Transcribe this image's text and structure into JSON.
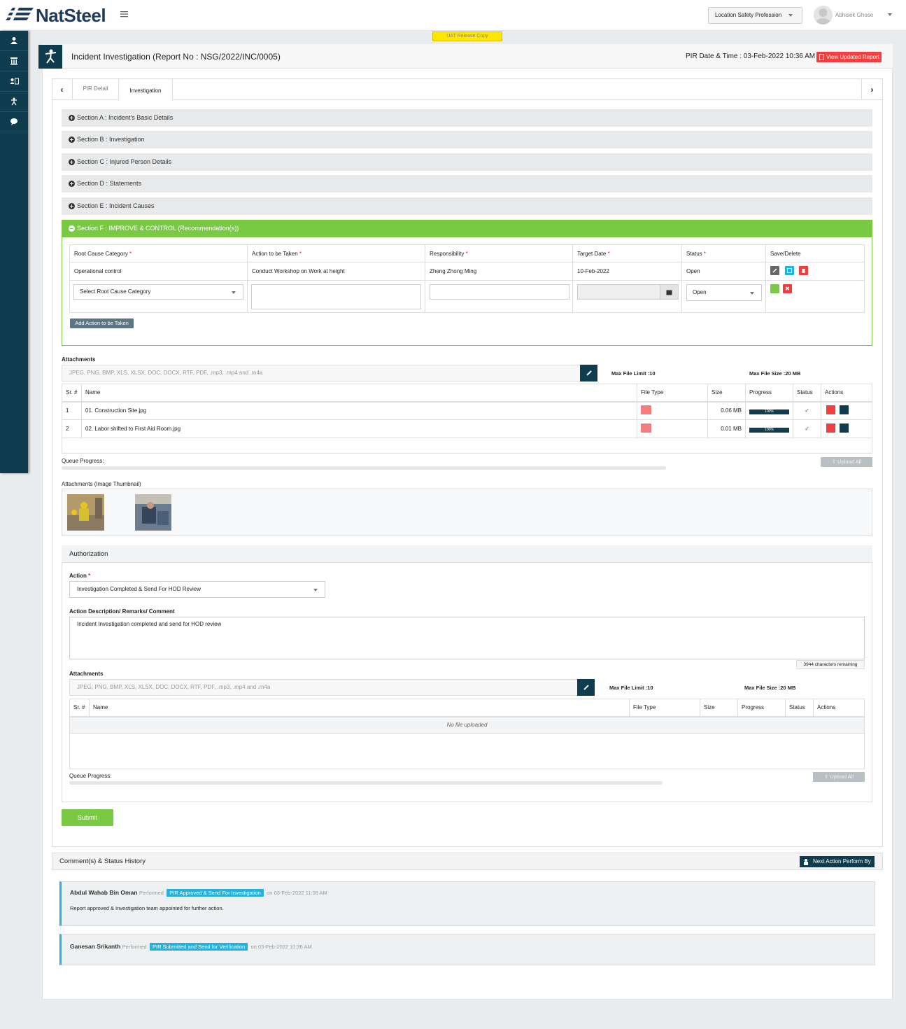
{
  "topbar": {
    "logo_text": "NatSteel",
    "role_select": "Location Safety Profession",
    "user_name": "Abhisek Ghose"
  },
  "banner": "UAT Release Copy",
  "sidebar": {
    "icons": [
      "profile-icon",
      "bank-icon",
      "id-card-icon",
      "incident-person-icon",
      "chat-icon"
    ]
  },
  "header": {
    "title": "Incident Investigation (Report No : NSG/2022/INC/0005)",
    "pir_date": "PIR Date & Time : 03-Feb-2022 10:36 AM",
    "view_report": "View Updated Report"
  },
  "tabs": [
    {
      "label": "PIR Detail",
      "active": false
    },
    {
      "label": "Investigation",
      "active": true
    }
  ],
  "sections": [
    "Section A : Incident's Basic Details",
    "Section B : Investigation",
    "Section C : Injured Person Details",
    "Section D : Statements",
    "Section E : Incident Causes",
    "Section F : IMPROVE & CONTROL (Recommendation(s))"
  ],
  "recommendations": {
    "headers": [
      "Root Cause Category",
      "Action to be Taken",
      "Responsibility",
      "Target Date",
      "Status",
      "Save/Delete"
    ],
    "required_mark": "*",
    "rows": [
      {
        "root_cause": "Operational control",
        "action": "Conduct Workshop on Work at height",
        "responsibility": "Zheng Zhong Ming",
        "target_date": "10-Feb-2022",
        "status": "Open"
      }
    ],
    "new_row": {
      "root_cause_placeholder": "Select Root Cause Category",
      "status": "Open"
    },
    "add_button": "Add Action to be Taken"
  },
  "attachments": {
    "label": "Attachments",
    "placeholder": "JPEG, PNG, BMP, XLS, XLSX, DOC, DOCX, RTF, PDF, .mp3, .mp4 and .m4a",
    "max_limit": "Max File Limit :10",
    "max_size": "Max File Size :20 MB",
    "headers": [
      "Sr. #",
      "Name",
      "File Type",
      "Size",
      "Progress",
      "Status",
      "Actions"
    ],
    "files": [
      {
        "sr": "1",
        "name": "01. Construction Site.jpg",
        "size": "0.06 MB",
        "progress": "100%",
        "progress_value": 100
      },
      {
        "sr": "2",
        "name": "02. Labor shifted to First Aid Room.jpg",
        "size": "0.01 MB",
        "progress": "100%",
        "progress_value": 100
      }
    ],
    "queue_label": "Queue Progress:",
    "upload_all": "Upload All",
    "thumbnails_label": "Attachments (Image Thumbnail)"
  },
  "authorization": {
    "title": "Authorization",
    "action_label": "Action",
    "action_value": "Investigation Completed & Send For HOD Review",
    "remarks_label": "Action Description/ Remarks/ Comment",
    "remarks_value": "Incident Investigation completed and send for HOD review",
    "chars_remaining": "3944 characters remaining",
    "attachments_label": "Attachments",
    "placeholder": "JPEG, PNG, BMP, XLS, XLSX, DOC, DOCX, RTF, PDF, .mp3, .mp4 and .m4a",
    "max_limit": "Max File Limit :10",
    "max_size": "Max File Size :20 MB",
    "headers": [
      "Sr. #",
      "Name",
      "File Type",
      "Size",
      "Progress",
      "Status",
      "Actions"
    ],
    "empty_text": "No file uploaded",
    "queue_label": "Queue Progress:",
    "upload_all": "Upload All"
  },
  "submit": "Submit",
  "history": {
    "title": "Comment(s) & Status History",
    "next_action": "Next Action Perform By",
    "performed": "Performed",
    "entries": [
      {
        "name": "Abdul Wahab Bin Oman",
        "status": "PIR Approved & Send For Investigation",
        "date": "on 03-Feb-2022 11:09 AM",
        "comment": "Report approved & Investigation team appointed for further action."
      },
      {
        "name": "Ganesan Srikanth",
        "status": "PIR Submitted and Send for Verification",
        "date": "on 03-Feb-2022 10:36 AM",
        "comment": ""
      }
    ]
  },
  "colors": {
    "brand": "#0f3c4f",
    "success": "#7ac943",
    "danger": "#f23e3e",
    "info": "#25b1d9",
    "warning_banner": "#ffe600"
  }
}
